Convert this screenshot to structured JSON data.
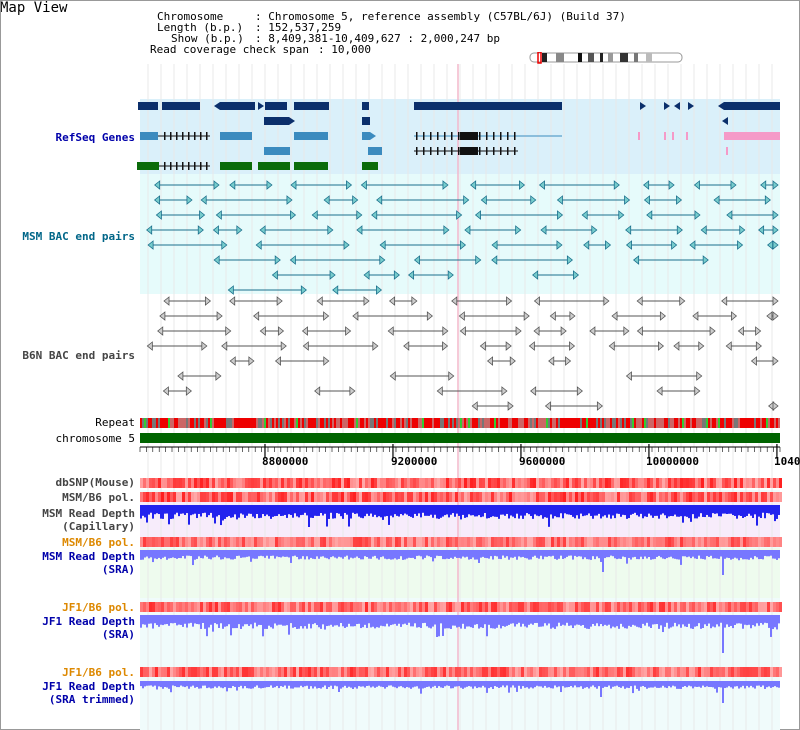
{
  "header": {
    "title": "Map View",
    "chromosome_label": "Chromosome",
    "chromosome_value": ": Chromosome 5, reference assembly (C57BL/6J) (Build 37)",
    "length_label": "Length (b.p.)",
    "length_value": ": 152,537,259",
    "show_label": "Show (b.p.)",
    "show_value": ": 8,409,381-10,409,627 : 2,000,247 bp",
    "coverage_label": "Read coverage check span",
    "coverage_value": ": 10,000"
  },
  "tracks": {
    "refseq": "RefSeq Genes",
    "msm_bac": "MSM BAC end pairs",
    "b6n_bac": "B6N BAC end pairs",
    "repeat": "Repeat",
    "chromosome": "chromosome 5",
    "dbsnp": "dbSNP(Mouse)",
    "msm_b6_pol": "MSM/B6 pol.",
    "msm_read_depth_cap_1": "MSM Read Depth",
    "msm_read_depth_cap_2": "(Capillary)",
    "msm_b6_pol2": "MSM/B6 pol.",
    "msm_read_depth_sra_1": "MSM Read Depth",
    "msm_read_depth_sra_2": "(SRA)",
    "jf1_b6_pol": "JF1/B6 pol.",
    "jf1_read_depth_sra_1": "JF1 Read Depth",
    "jf1_read_depth_sra_2": "(SRA)",
    "jf1_b6_pol2": "JF1/B6 pol.",
    "jf1_read_depth_trim_1": "JF1 Read Depth",
    "jf1_read_depth_trim_2": "(SRA trimmed)"
  },
  "axis": {
    "ticks": [
      "8800000",
      "9200000",
      "9600000",
      "10000000",
      "1040"
    ]
  },
  "colors": {
    "refseq_label": "#0000aa",
    "msm_label": "#006688",
    "b6n_label": "#444444",
    "depth_label": "#0000aa",
    "pol_label": "#dd8800",
    "gene_dark": "#0b2f6b",
    "gene_mid": "#3b8bbf",
    "gene_green": "#0a6b0a",
    "gene_pink": "#f59ac8",
    "chromosome_bar": "#006400",
    "depth_blue": "#2222ee",
    "depth_light": "#7777ff"
  }
}
